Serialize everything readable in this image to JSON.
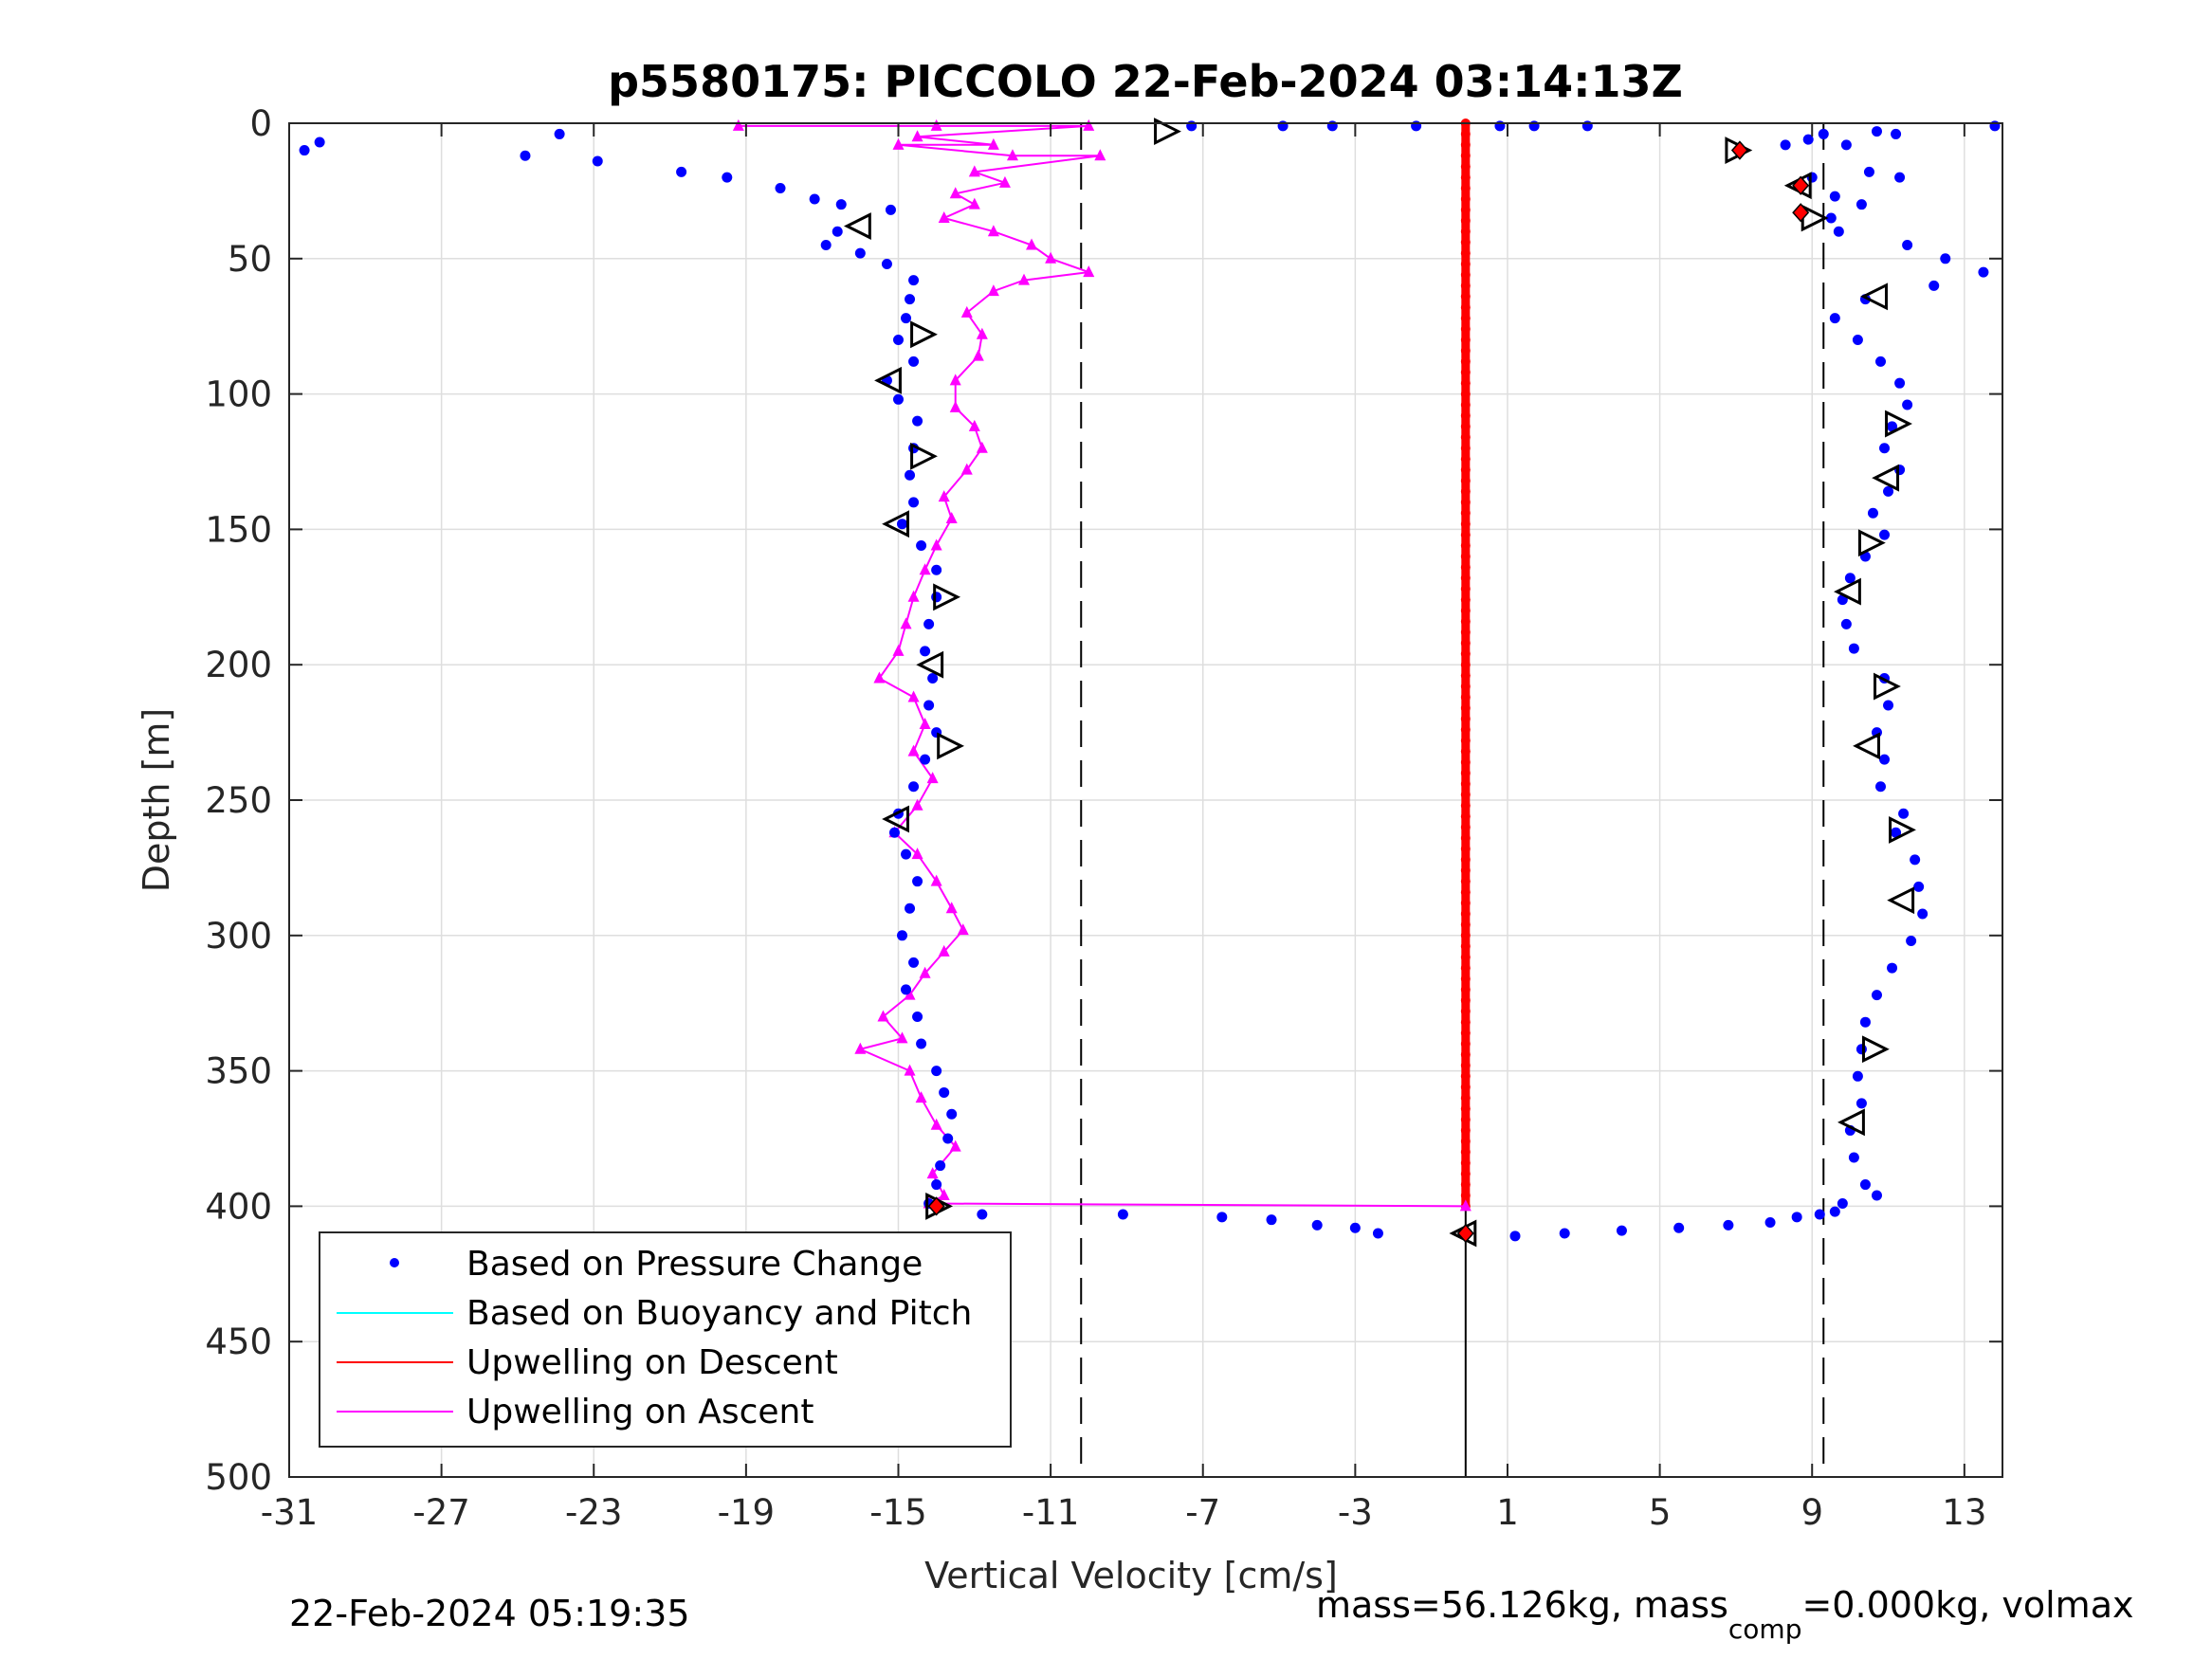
{
  "chart_data": {
    "type": "scatter",
    "title": "p5580175: PICCOLO 22-Feb-2024 03:14:13Z",
    "xlabel": "Vertical Velocity [cm/s]",
    "ylabel": "Depth [m]",
    "xlim": [
      -31,
      14
    ],
    "ylim": [
      0,
      500
    ],
    "y_reversed": true,
    "grid": true,
    "legend_position": "bottom-left",
    "x_ticks": [
      -31,
      -27,
      -23,
      -19,
      -15,
      -11,
      -7,
      -3,
      1,
      5,
      9,
      13
    ],
    "x_tick_labels": [
      "-31",
      "-27",
      "-23",
      "-19",
      "-15",
      "-11",
      "-7",
      "-3",
      "1",
      "5",
      "9",
      "13"
    ],
    "y_ticks": [
      0,
      50,
      100,
      150,
      200,
      250,
      300,
      350,
      400,
      450,
      500
    ],
    "y_tick_labels": [
      "0",
      "50",
      "100",
      "150",
      "200",
      "250",
      "300",
      "350",
      "400",
      "450",
      "500"
    ],
    "reference_lines": {
      "dashed_x": [
        -10.2,
        9.3
      ],
      "solid_x": [
        -0.1
      ],
      "solid_x_depth_range": [
        400,
        500
      ]
    },
    "legend": [
      {
        "label": "Based on Pressure Change",
        "color": "#0000ff",
        "style": "dot"
      },
      {
        "label": "Based on Buoyancy and Pitch",
        "color": "#00ffff",
        "style": "line"
      },
      {
        "label": "Upwelling on Descent",
        "color": "#ff0000",
        "style": "line"
      },
      {
        "label": "Upwelling on Ascent",
        "color": "#ff00ff",
        "style": "line"
      }
    ],
    "series": [
      {
        "name": "Based on Pressure Change",
        "color": "#0000ff",
        "segment": "descent",
        "points": [
          [
            -30.6,
            10
          ],
          [
            -30.2,
            7
          ],
          [
            -24.8,
            12
          ],
          [
            -23.9,
            4
          ],
          [
            -22.9,
            14
          ],
          [
            -20.7,
            18
          ],
          [
            -19.5,
            20
          ],
          [
            -18.1,
            24
          ],
          [
            -17.2,
            28
          ],
          [
            -16.5,
            30
          ],
          [
            -15.2,
            32
          ],
          [
            -16.6,
            40
          ],
          [
            -16.9,
            45
          ],
          [
            -16.0,
            48
          ],
          [
            -15.3,
            52
          ],
          [
            -14.6,
            58
          ],
          [
            -14.7,
            65
          ],
          [
            -14.8,
            72
          ],
          [
            -15.0,
            80
          ],
          [
            -14.6,
            88
          ],
          [
            -15.3,
            95
          ],
          [
            -15.0,
            102
          ],
          [
            -14.5,
            110
          ],
          [
            -14.6,
            120
          ],
          [
            -14.7,
            130
          ],
          [
            -14.6,
            140
          ],
          [
            -14.9,
            148
          ],
          [
            -14.4,
            156
          ],
          [
            -14.0,
            165
          ],
          [
            -14.0,
            175
          ],
          [
            -14.2,
            185
          ],
          [
            -14.3,
            195
          ],
          [
            -14.1,
            205
          ],
          [
            -14.2,
            215
          ],
          [
            -14.0,
            225
          ],
          [
            -14.3,
            235
          ],
          [
            -14.6,
            245
          ],
          [
            -15.0,
            255
          ],
          [
            -15.1,
            262
          ],
          [
            -14.8,
            270
          ],
          [
            -14.5,
            280
          ],
          [
            -14.7,
            290
          ],
          [
            -14.9,
            300
          ],
          [
            -14.6,
            310
          ],
          [
            -14.8,
            320
          ],
          [
            -14.5,
            330
          ],
          [
            -14.4,
            340
          ],
          [
            -14.0,
            350
          ],
          [
            -13.8,
            358
          ],
          [
            -13.6,
            366
          ],
          [
            -13.7,
            375
          ],
          [
            -13.9,
            385
          ],
          [
            -14.0,
            392
          ],
          [
            -14.2,
            399
          ],
          [
            -12.8,
            403
          ],
          [
            -9.1,
            403
          ],
          [
            -6.5,
            404
          ],
          [
            -5.2,
            405
          ],
          [
            -4.0,
            407
          ],
          [
            -3.0,
            408
          ],
          [
            -2.4,
            410
          ],
          [
            1.2,
            411
          ],
          [
            2.5,
            410
          ],
          [
            4.0,
            409
          ],
          [
            5.5,
            408
          ],
          [
            6.8,
            407
          ],
          [
            7.9,
            406
          ],
          [
            8.6,
            404
          ],
          [
            9.2,
            403
          ],
          [
            9.6,
            402
          ],
          [
            9.8,
            399
          ]
        ]
      },
      {
        "name": "Based on Pressure Change",
        "color": "#0000ff",
        "segment": "ascent",
        "points": [
          [
            -7.3,
            1
          ],
          [
            -4.9,
            1
          ],
          [
            -3.6,
            1
          ],
          [
            -1.4,
            1
          ],
          [
            0.8,
            1
          ],
          [
            1.7,
            1
          ],
          [
            3.1,
            1
          ],
          [
            8.3,
            8
          ],
          [
            8.9,
            6
          ],
          [
            9.3,
            4
          ],
          [
            9.9,
            8
          ],
          [
            10.7,
            3
          ],
          [
            11.2,
            4
          ],
          [
            13.8,
            1
          ],
          [
            9.0,
            20
          ],
          [
            10.5,
            18
          ],
          [
            11.3,
            20
          ],
          [
            9.6,
            27
          ],
          [
            10.3,
            30
          ],
          [
            9.5,
            35
          ],
          [
            9.7,
            40
          ],
          [
            11.5,
            45
          ],
          [
            12.5,
            50
          ],
          [
            13.5,
            55
          ],
          [
            12.2,
            60
          ],
          [
            10.4,
            65
          ],
          [
            9.6,
            72
          ],
          [
            10.2,
            80
          ],
          [
            10.8,
            88
          ],
          [
            11.3,
            96
          ],
          [
            11.5,
            104
          ],
          [
            11.1,
            112
          ],
          [
            10.9,
            120
          ],
          [
            11.3,
            128
          ],
          [
            11.0,
            136
          ],
          [
            10.6,
            144
          ],
          [
            10.9,
            152
          ],
          [
            10.4,
            160
          ],
          [
            10.0,
            168
          ],
          [
            9.8,
            176
          ],
          [
            9.9,
            185
          ],
          [
            10.1,
            194
          ],
          [
            10.9,
            205
          ],
          [
            11.0,
            215
          ],
          [
            10.7,
            225
          ],
          [
            10.9,
            235
          ],
          [
            10.8,
            245
          ],
          [
            11.4,
            255
          ],
          [
            11.2,
            262
          ],
          [
            11.7,
            272
          ],
          [
            11.8,
            282
          ],
          [
            11.9,
            292
          ],
          [
            11.6,
            302
          ],
          [
            11.1,
            312
          ],
          [
            10.7,
            322
          ],
          [
            10.4,
            332
          ],
          [
            10.3,
            342
          ],
          [
            10.2,
            352
          ],
          [
            10.3,
            362
          ],
          [
            10.0,
            372
          ],
          [
            10.1,
            382
          ],
          [
            10.4,
            392
          ],
          [
            10.7,
            396
          ]
        ]
      },
      {
        "name": "Upwelling on Descent",
        "color": "#ff0000",
        "x": -0.1,
        "depth_range": [
          0,
          400
        ]
      },
      {
        "name": "Upwelling on Ascent",
        "color": "#ff00ff",
        "points": [
          [
            -19.2,
            1
          ],
          [
            -14.0,
            1
          ],
          [
            -10.0,
            1
          ],
          [
            -14.5,
            5
          ],
          [
            -12.5,
            8
          ],
          [
            -15.0,
            8
          ],
          [
            -12.0,
            12
          ],
          [
            -9.7,
            12
          ],
          [
            -13.0,
            18
          ],
          [
            -12.2,
            22
          ],
          [
            -13.5,
            26
          ],
          [
            -13.0,
            30
          ],
          [
            -13.8,
            35
          ],
          [
            -12.5,
            40
          ],
          [
            -11.5,
            45
          ],
          [
            -11.0,
            50
          ],
          [
            -10.0,
            55
          ],
          [
            -11.7,
            58
          ],
          [
            -12.5,
            62
          ],
          [
            -13.2,
            70
          ],
          [
            -12.8,
            78
          ],
          [
            -12.9,
            86
          ],
          [
            -13.5,
            95
          ],
          [
            -13.5,
            105
          ],
          [
            -13.0,
            112
          ],
          [
            -12.8,
            120
          ],
          [
            -13.2,
            128
          ],
          [
            -13.8,
            138
          ],
          [
            -13.6,
            146
          ],
          [
            -14.0,
            156
          ],
          [
            -14.3,
            165
          ],
          [
            -14.6,
            175
          ],
          [
            -14.8,
            185
          ],
          [
            -15.0,
            195
          ],
          [
            -15.5,
            205
          ],
          [
            -14.6,
            212
          ],
          [
            -14.3,
            222
          ],
          [
            -14.6,
            232
          ],
          [
            -14.1,
            242
          ],
          [
            -14.5,
            252
          ],
          [
            -15.1,
            262
          ],
          [
            -14.5,
            270
          ],
          [
            -14.0,
            280
          ],
          [
            -13.6,
            290
          ],
          [
            -13.3,
            298
          ],
          [
            -13.8,
            306
          ],
          [
            -14.3,
            314
          ],
          [
            -14.7,
            322
          ],
          [
            -15.4,
            330
          ],
          [
            -14.9,
            338
          ],
          [
            -16.0,
            342
          ],
          [
            -14.7,
            350
          ],
          [
            -14.4,
            360
          ],
          [
            -14.0,
            370
          ],
          [
            -13.5,
            378
          ],
          [
            -14.1,
            388
          ],
          [
            -13.8,
            396
          ],
          [
            -14.2,
            399
          ],
          [
            -0.1,
            400
          ]
        ]
      },
      {
        "name": "Pitch/roll markers (black triangles)",
        "color": "#000000",
        "points": [
          [
            -8.0,
            3
          ],
          [
            -16.0,
            38
          ],
          [
            -14.4,
            78
          ],
          [
            -15.2,
            95
          ],
          [
            -14.4,
            123
          ],
          [
            -15.0,
            148
          ],
          [
            -13.8,
            175
          ],
          [
            -14.1,
            200
          ],
          [
            -13.7,
            230
          ],
          [
            -15.0,
            257
          ],
          [
            -14.0,
            400
          ],
          [
            -0.1,
            410
          ],
          [
            7.0,
            10
          ],
          [
            8.7,
            23
          ],
          [
            9.0,
            35
          ],
          [
            10.7,
            64
          ],
          [
            11.2,
            111
          ],
          [
            11.0,
            131
          ],
          [
            10.5,
            155
          ],
          [
            10.0,
            173
          ],
          [
            10.9,
            208
          ],
          [
            10.5,
            230
          ],
          [
            11.3,
            261
          ],
          [
            11.4,
            287
          ],
          [
            10.6,
            342
          ],
          [
            10.1,
            369
          ]
        ]
      },
      {
        "name": "Red diamond markers",
        "color": "#ff0000",
        "points": [
          [
            7.1,
            10
          ],
          [
            8.7,
            23
          ],
          [
            8.7,
            33
          ],
          [
            -14.0,
            400
          ],
          [
            -0.1,
            410
          ]
        ]
      }
    ]
  },
  "footer": {
    "timestamp": "22-Feb-2024 05:19:35",
    "mass_prefix": "mass=56.126kg, mass",
    "mass_sub": "comp",
    "mass_suffix": "=0.000kg, volmax"
  }
}
